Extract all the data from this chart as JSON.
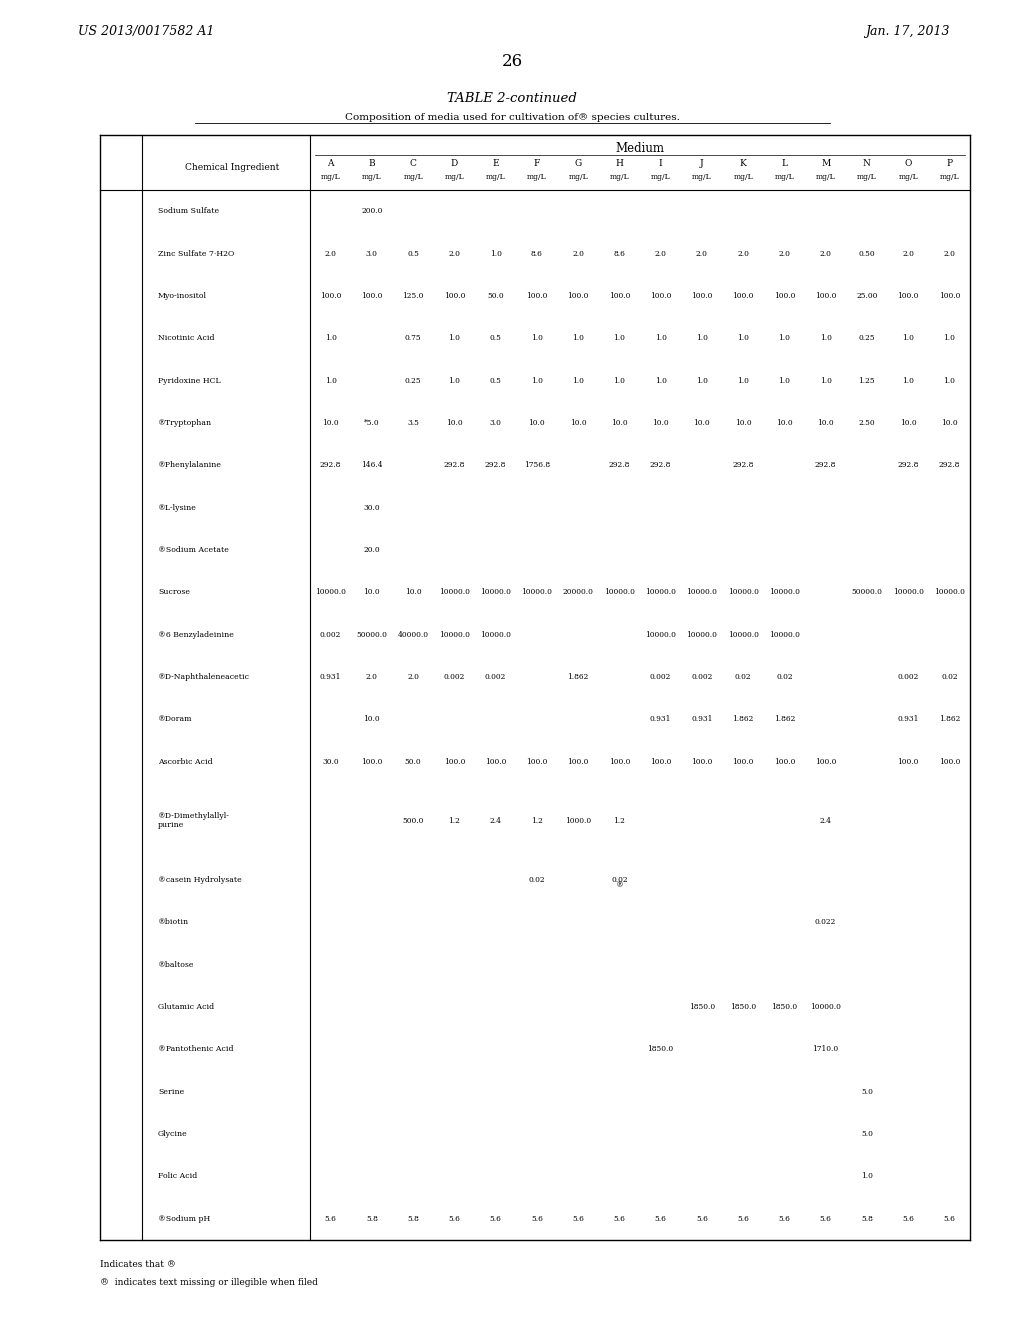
{
  "header_left": "US 2013/0017582 A1",
  "header_right": "Jan. 17, 2013",
  "page_number": "26",
  "table_title": "TABLE 2-continued",
  "table_subtitle": "Composition of media used for cultivation of® species cultures.",
  "medium_label": "Medium",
  "col_letters": [
    "A",
    "B",
    "C",
    "D",
    "E",
    "F",
    "G",
    "H",
    "I",
    "J",
    "K",
    "L",
    "M",
    "N",
    "O",
    "P"
  ],
  "rows": [
    [
      "Sodium Sulfate\nZinc Sulfate 7·H2O\nMyo-inositol\nNicotinic Acid\nPyridoxine HCL\n®Tryptophan\n®Phenylalanine\n®L-lysine\n®Sodium Acetate",
      "2.0\n100.0\n1.0\n1.0\n10.0\n292.8",
      "200.0\n3.0\n100.0\n\n\n*5.0\n146.4\n30.0\n20.0",
      "0.5\n125.0\n0.75\n0.25\n3.5",
      "2.0\n100.0\n1.0\n1.0\n10.0\n292.8",
      "1.0\n50.0\n0.5\n0.5\n3.0\n292.8",
      "8.6\n100.0\n1.0\n1.0\n10.0\n1756.8",
      "2.0\n100.0\n1.0\n1.0\n10.0",
      "8.6\n100.0\n1.0\n1.0\n10.0\n292.8",
      "2.0\n100.0\n1.0\n1.0\n10.0\n292.8",
      "2.0\n100.0\n1.0\n1.0\n10.0",
      "2.0\n100.0\n1.0\n1.0\n10.0\n292.8",
      "2.0\n100.0\n1.0\n1.0\n10.0",
      "2.0\n100.0\n1.0\n1.0\n10.0\n292.8",
      "0.50\n25.00\n0.25\n1.25\n2.50",
      "2.0\n100.0\n1.0\n1.0\n10.0\n292.8",
      "2.0\n100.0\n1.0\n1.0\n10.0\n292.8"
    ],
    [
      "®Sucrose",
      "10000.0",
      "10.0",
      "10.0\n40000.0\n2.0",
      "10000.0\n10000.0\n0.002",
      "10000.0\n10000.0\n0.002",
      "10000.0",
      "20000.0\n\n1.862",
      "10000.0",
      "10000.0\n10000.0\n0.002\n0.931",
      "10000.0\n10000.0\n0.002\n0.931",
      "10000.0\n10000.0\n0.02\n1.862",
      "10000.0\n10000.0\n0.02\n1.862",
      "",
      "50000.0",
      "10000.0\n\n0.002\n0.931",
      "10000.0\n\n0.02\n1.862"
    ],
    [
      "®6 Benzyladeinine\n®D-Naphthaleneacetic\n®Doram\nAscorbic Acid\n®D-Dimethylallyl-\npurine",
      "0.002\n0.931\n30.0",
      "50000.0\n2.0\n10.0\n100.0",
      "50.0\n\n500.0",
      "100.0\n\n1.2",
      "100.0\n\n2.4",
      "100.0\n\n1.2",
      "100.0\n\n1000.0",
      "100.0\n\n1.2",
      "100.0",
      "100.0",
      "100.0",
      "100.0",
      "100.0\n\n2.4",
      "",
      "100.0",
      "100.0"
    ],
    [
      "®casein Hydrolysate\n®biotin\n®baltose\nGlutamic Acid\n®Pantothenic Acid",
      "",
      "",
      "",
      "",
      "",
      "0.02\n\n\n\n",
      "",
      "0.02\n\n®\n",
      "",
      "1850.0",
      "1850.0",
      "1850.0",
      "0.022\n10000.0\n1710.0",
      "",
      "",
      ""
    ],
    [
      "Serine\nGlycine\nFolic Acid\n®Sodium pH",
      "5.6",
      "5.8",
      "5.8",
      "5.6",
      "5.6",
      "5.6",
      "5.6",
      "5.6",
      "5.6",
      "5.6",
      "5.6",
      "5.6",
      "5.6",
      "5.0\n5.0\n1.0\n5.8",
      "5.6",
      "5.6"
    ]
  ],
  "footnote1": "Indicates that ®",
  "footnote2": "®  indicates text missing or illegible when filed",
  "bg_color": "#ffffff",
  "text_color": "#000000"
}
